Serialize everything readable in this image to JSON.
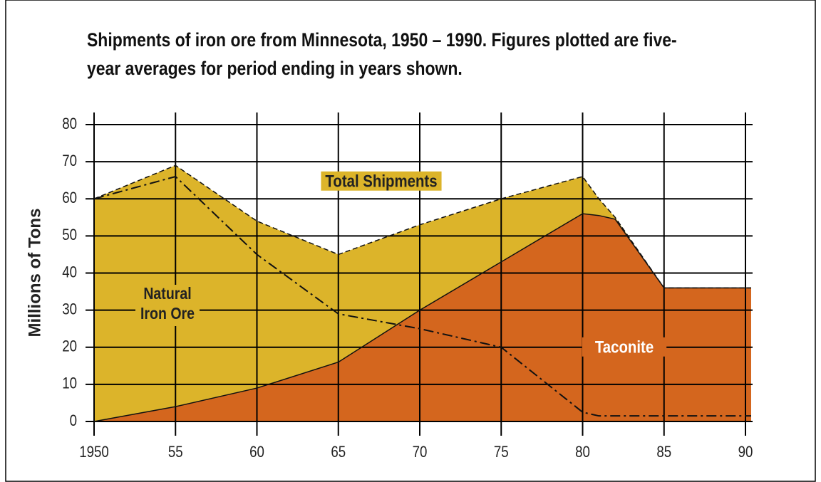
{
  "chart_data": {
    "type": "area",
    "title": "Shipments of iron ore from Minnesota, 1950 – 1990. Figures plotted are five-year averages for period ending in years shown.",
    "y_label": "Millions of Tons",
    "x": [
      1950,
      1955,
      1960,
      1965,
      1970,
      1975,
      1980,
      1981,
      1982,
      1985,
      1990
    ],
    "series": [
      {
        "name": "Total Shipments",
        "color": "#dcb42a",
        "values": [
          60,
          69,
          54,
          45,
          53,
          60,
          66,
          60,
          55,
          36,
          36
        ]
      },
      {
        "name": "Taconite",
        "color": "#d4661e",
        "values": [
          0,
          4,
          9,
          16,
          30,
          43,
          56,
          55.5,
          54.5,
          36,
          36
        ]
      },
      {
        "name": "Natural Iron Ore",
        "color": "#000000",
        "values": [
          60,
          66,
          45,
          29,
          25,
          20,
          2.5,
          1.5,
          1.5,
          1.5,
          1.5
        ]
      }
    ],
    "xlim": [
      1950,
      1990
    ],
    "xticks": [
      1950,
      {
        "value": 1955,
        "label": "55"
      },
      {
        "value": 1960,
        "label": "60"
      },
      {
        "value": 1965,
        "label": "65"
      },
      {
        "value": 1970,
        "label": "70"
      },
      {
        "value": 1975,
        "label": "75"
      },
      {
        "value": 1980,
        "label": "80"
      },
      {
        "value": 1985,
        "label": "85"
      },
      {
        "value": 1990,
        "label": "90"
      }
    ],
    "ylim": [
      0,
      80
    ],
    "yticks": [
      0,
      10,
      20,
      30,
      40,
      50,
      60,
      70,
      80
    ],
    "grid": true
  }
}
